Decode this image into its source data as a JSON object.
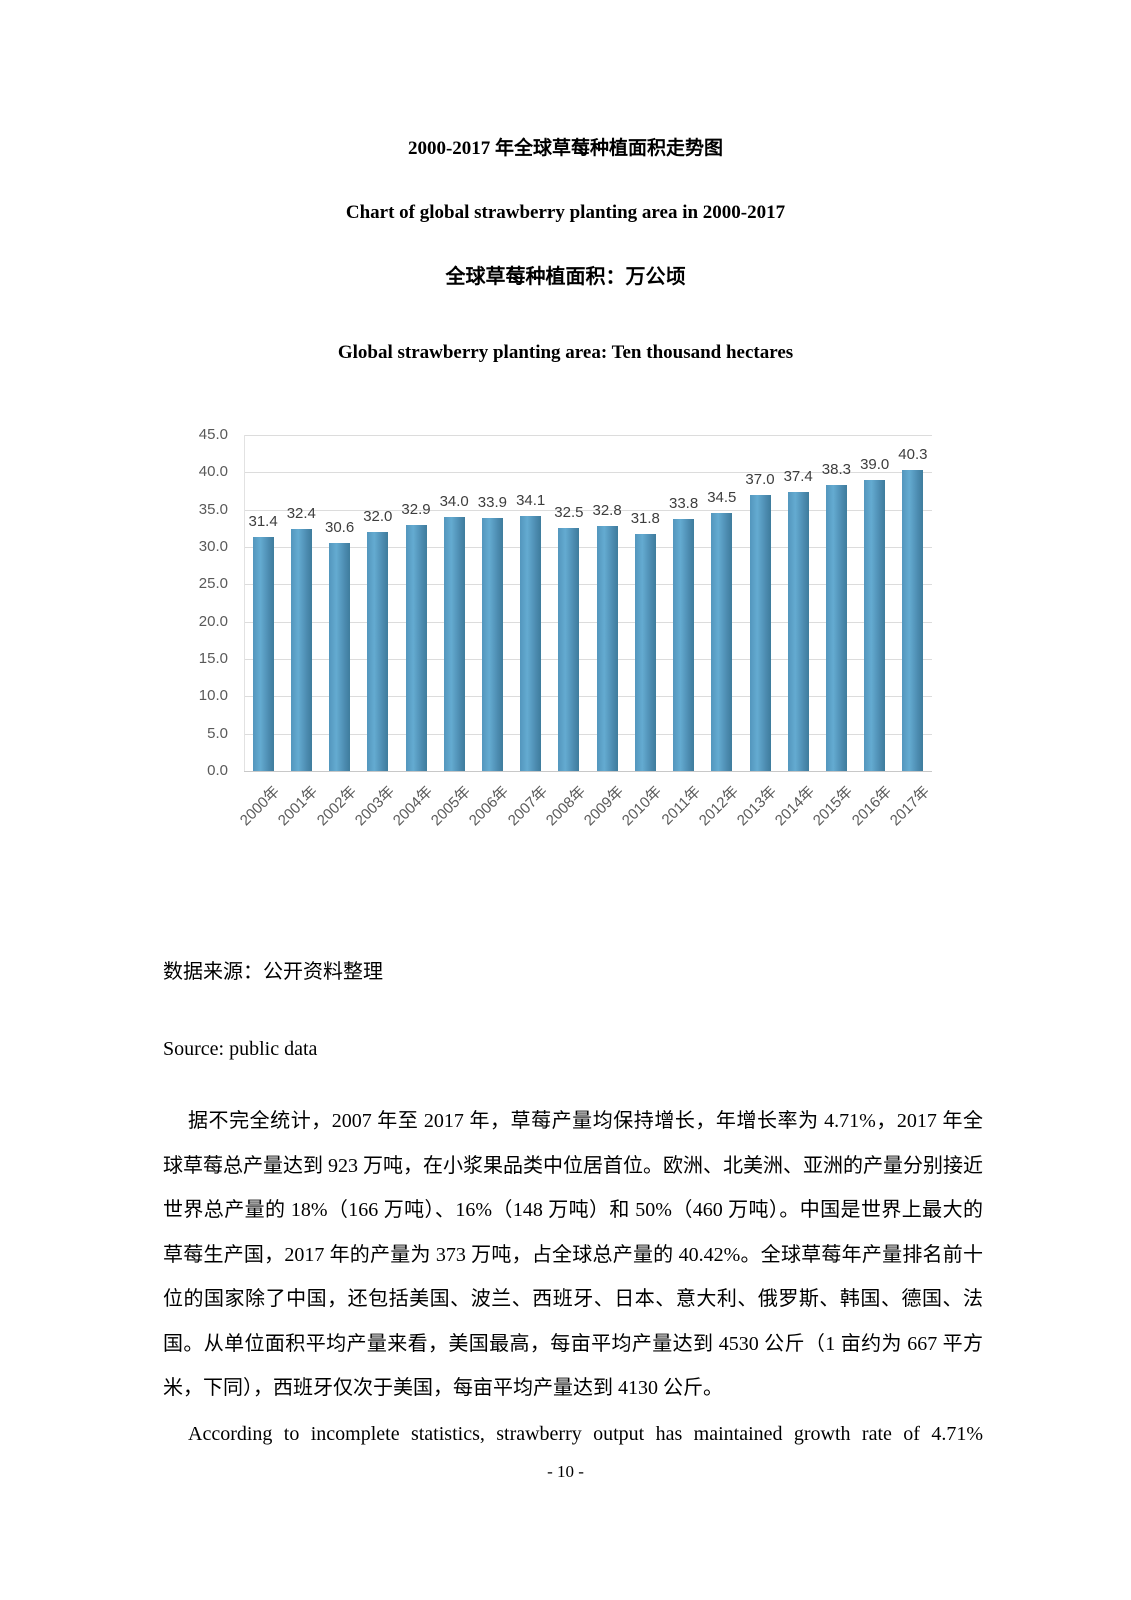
{
  "document": {
    "title_zh": "2000-2017 年全球草莓种植面积走势图",
    "title_en": "Chart of global strawberry planting area in 2000-2017",
    "subtitle_zh": "全球草莓种植面积：万公顷",
    "subtitle_en": "Global strawberry planting area: Ten thousand hectares",
    "source_zh": "数据来源：公开资料整理",
    "source_en": "Source: public data",
    "body_zh": "据不完全统计，2007 年至 2017 年，草莓产量均保持增长，年增长率为 4.71%，2017 年全球草莓总产量达到 923 万吨，在小浆果品类中位居首位。欧洲、北美洲、亚洲的产量分别接近世界总产量的 18%（166 万吨）、16%（148 万吨）和 50%（460 万吨）。中国是世界上最大的草莓生产国，2017 年的产量为 373 万吨，占全球总产量的 40.42%。全球草莓年产量排名前十位的国家除了中国，还包括美国、波兰、西班牙、日本、意大利、俄罗斯、韩国、德国、法国。从单位面积平均产量来看，美国最高，每亩平均产量达到 4530 公斤（1 亩约为 667 平方米，下同），西班牙仅次于美国，每亩平均产量达到 4130 公斤。",
    "body_en": "According to incomplete statistics, strawberry output has maintained growth rate of 4.71%",
    "page_number": "- 10 -"
  },
  "chart_data": {
    "type": "bar",
    "title": "全球草莓种植面积：万公顷 / Global strawberry planting area: Ten thousand hectares",
    "categories": [
      "2000年",
      "2001年",
      "2002年",
      "2003年",
      "2004年",
      "2005年",
      "2006年",
      "2007年",
      "2008年",
      "2009年",
      "2010年",
      "2011年",
      "2012年",
      "2013年",
      "2014年",
      "2015年",
      "2016年",
      "2017年"
    ],
    "values": [
      31.4,
      32.4,
      30.6,
      32.0,
      32.9,
      34.0,
      33.9,
      34.1,
      32.5,
      32.8,
      31.8,
      33.8,
      34.5,
      37.0,
      37.4,
      38.3,
      39.0,
      40.3
    ],
    "value_labels": [
      "31.4",
      "32.4",
      "30.6",
      "32.0",
      "32.9",
      "34.0",
      "33.9",
      "34.1",
      "32.5",
      "32.8",
      "31.8",
      "33.8",
      "34.5",
      "37.0",
      "37.4",
      "38.3",
      "39.0",
      "40.3"
    ],
    "yticks": [
      "45.0",
      "40.0",
      "35.0",
      "30.0",
      "25.0",
      "20.0",
      "15.0",
      "10.0",
      "5.0",
      "0.0"
    ],
    "ylim": [
      0,
      45
    ],
    "xlabel": "",
    "ylabel": "",
    "grid": true,
    "legend_position": "none",
    "colors": {
      "bar_gradient": [
        "#5396bd",
        "#64abd1",
        "#3e7c9c"
      ],
      "grid": "#dcdcdc",
      "axis": "#c8c8c8",
      "value_label": "#3d3d3d",
      "tick_label": "#595959"
    }
  }
}
